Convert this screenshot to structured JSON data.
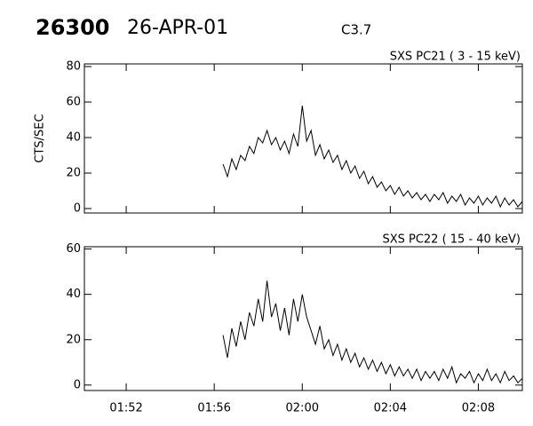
{
  "header": {
    "id": "26300",
    "date": "26-APR-01",
    "class": "C3.7"
  },
  "chart_data": [
    {
      "type": "line",
      "title": "SXS PC21  (  3 - 15 keV)",
      "y_label": "CTS/SEC",
      "color": "#000000",
      "x": [
        116.4,
        116.6,
        116.8,
        117.0,
        117.2,
        117.4,
        117.6,
        117.8,
        118.0,
        118.2,
        118.4,
        118.6,
        118.8,
        119.0,
        119.2,
        119.4,
        119.6,
        119.8,
        120.0,
        120.2,
        120.4,
        120.6,
        120.8,
        121.0,
        121.2,
        121.4,
        121.6,
        121.8,
        122.0,
        122.2,
        122.4,
        122.6,
        122.8,
        123.0,
        123.2,
        123.4,
        123.6,
        123.8,
        124.0,
        124.2,
        124.4,
        124.6,
        124.8,
        125.0,
        125.2,
        125.4,
        125.6,
        125.8,
        126.0,
        126.2,
        126.4,
        126.6,
        126.8,
        127.0,
        127.2,
        127.4,
        127.6,
        127.8,
        128.0,
        128.2,
        128.4,
        128.6,
        128.8,
        129.0,
        129.2,
        129.4,
        129.6,
        129.8,
        130.0
      ],
      "values": [
        25,
        18,
        28,
        22,
        30,
        27,
        35,
        31,
        40,
        37,
        44,
        36,
        40,
        33,
        38,
        31,
        42,
        35,
        58,
        38,
        44,
        30,
        36,
        28,
        33,
        26,
        30,
        22,
        27,
        20,
        24,
        17,
        21,
        14,
        18,
        12,
        15,
        10,
        13,
        8,
        12,
        7,
        10,
        6,
        9,
        5,
        8,
        4,
        8,
        5,
        9,
        3,
        7,
        4,
        8,
        2,
        6,
        3,
        7,
        2,
        6,
        3,
        7,
        1,
        6,
        2,
        5,
        1,
        4
      ],
      "xlim": [
        110.1,
        130.0
      ],
      "ylim": [
        -2.5,
        81.5
      ],
      "yticks": [
        0,
        20,
        40,
        60,
        80
      ]
    },
    {
      "type": "line",
      "title": "SXS PC22  ( 15 - 40 keV)",
      "color": "#000000",
      "x": [
        116.4,
        116.6,
        116.8,
        117.0,
        117.2,
        117.4,
        117.6,
        117.8,
        118.0,
        118.2,
        118.4,
        118.6,
        118.8,
        119.0,
        119.2,
        119.4,
        119.6,
        119.8,
        120.0,
        120.2,
        120.4,
        120.6,
        120.8,
        121.0,
        121.2,
        121.4,
        121.6,
        121.8,
        122.0,
        122.2,
        122.4,
        122.6,
        122.8,
        123.0,
        123.2,
        123.4,
        123.6,
        123.8,
        124.0,
        124.2,
        124.4,
        124.6,
        124.8,
        125.0,
        125.2,
        125.4,
        125.6,
        125.8,
        126.0,
        126.2,
        126.4,
        126.6,
        126.8,
        127.0,
        127.2,
        127.4,
        127.6,
        127.8,
        128.0,
        128.2,
        128.4,
        128.6,
        128.8,
        129.0,
        129.2,
        129.4,
        129.6,
        129.8,
        130.0
      ],
      "values": [
        22,
        12,
        25,
        17,
        28,
        20,
        32,
        26,
        38,
        28,
        46,
        30,
        36,
        24,
        34,
        22,
        38,
        28,
        40,
        30,
        24,
        18,
        26,
        16,
        20,
        13,
        18,
        11,
        16,
        10,
        14,
        8,
        12,
        7,
        11,
        6,
        10,
        5,
        9,
        4,
        8,
        4,
        7,
        3,
        7,
        2,
        6,
        3,
        6,
        2,
        7,
        3,
        8,
        1,
        5,
        3,
        6,
        1,
        5,
        2,
        7,
        2,
        5,
        1,
        6,
        2,
        4,
        1,
        3
      ],
      "xlim": [
        110.1,
        130.0
      ],
      "ylim": [
        -2.4,
        61.0
      ],
      "yticks": [
        0,
        20,
        40,
        60
      ],
      "xticks": [
        {
          "value": 112,
          "label": "01:52"
        },
        {
          "value": 116,
          "label": "01:56"
        },
        {
          "value": 120,
          "label": "02:00"
        },
        {
          "value": 124,
          "label": "02:04"
        },
        {
          "value": 128,
          "label": "02:08"
        }
      ]
    }
  ]
}
